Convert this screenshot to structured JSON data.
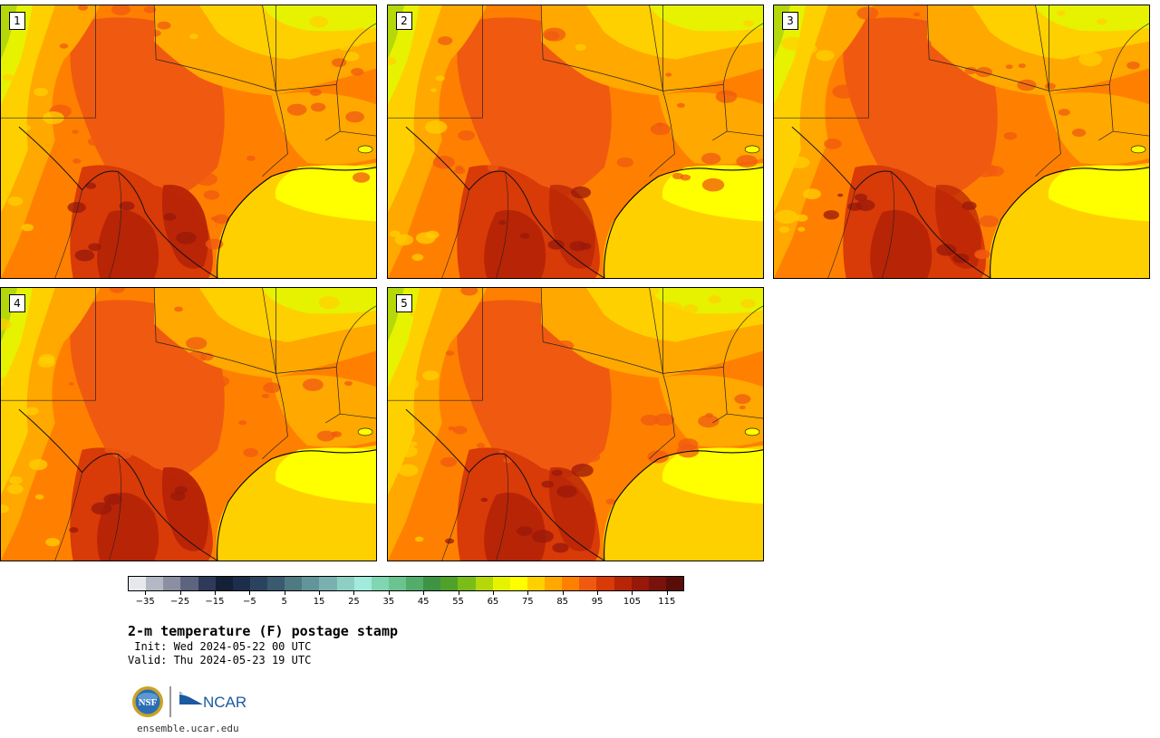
{
  "panels": [
    {
      "id": "1",
      "label": "1"
    },
    {
      "id": "2",
      "label": "2"
    },
    {
      "id": "3",
      "label": "3"
    },
    {
      "id": "4",
      "label": "4"
    },
    {
      "id": "5",
      "label": "5"
    }
  ],
  "colorbar": {
    "colors": [
      "#e6e8ec",
      "#b4b8c4",
      "#8a8fa2",
      "#5c6480",
      "#2f3a5a",
      "#142038",
      "#1c2e4c",
      "#2a4460",
      "#3a5a70",
      "#4f7a82",
      "#62959a",
      "#78b1b0",
      "#8ecfc4",
      "#a2eadc",
      "#7fd6b0",
      "#6ac48f",
      "#52ad6b",
      "#3e9444",
      "#4ea22a",
      "#7bbd18",
      "#b4d80a",
      "#e6f200",
      "#ffff00",
      "#ffd000",
      "#ffa800",
      "#ff8000",
      "#f05a10",
      "#d83a08",
      "#b82406",
      "#98180a",
      "#7a120c",
      "#5a0c08"
    ],
    "ticks": [
      "−35",
      "−25",
      "−15",
      "−5",
      "5",
      "15",
      "25",
      "35",
      "45",
      "55",
      "65",
      "75",
      "85",
      "95",
      "105",
      "115"
    ],
    "tick_values": [
      -35,
      -25,
      -15,
      -5,
      5,
      15,
      25,
      35,
      45,
      55,
      65,
      75,
      85,
      95,
      105,
      115
    ],
    "vmin": -40,
    "vmax": 120
  },
  "title": "2-m temperature (F) postage stamp",
  "init": " Init: Wed 2024-05-22 00 UTC",
  "valid": "Valid: Thu 2024-05-23 19 UTC",
  "url": "ensemble.ucar.edu",
  "logos": {
    "nsf": "NSF",
    "ncar": "NCAR"
  }
}
